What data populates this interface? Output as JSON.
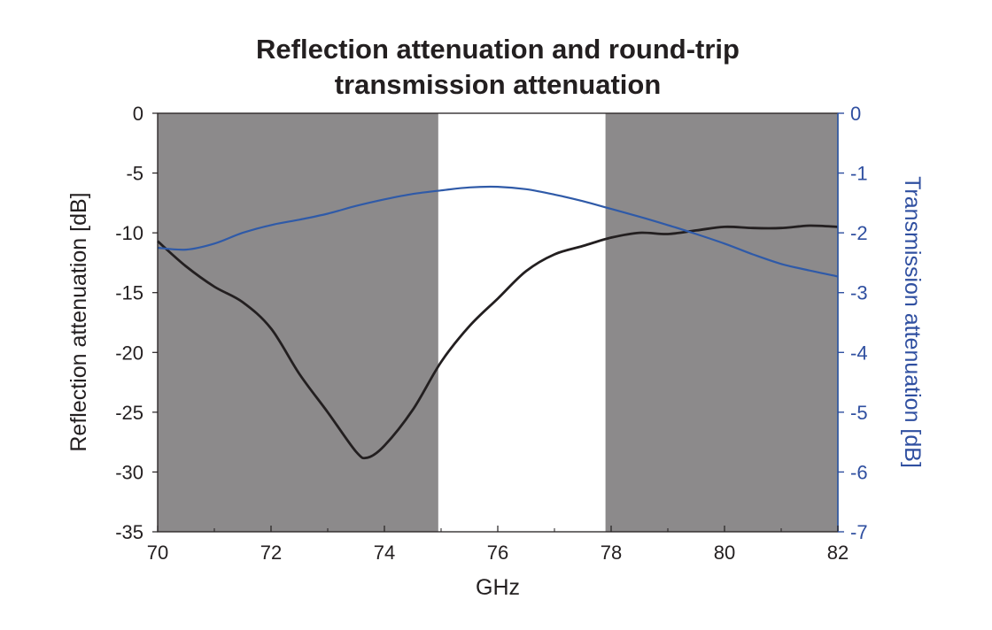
{
  "chart_data": {
    "type": "line",
    "title_lines": [
      "Reflection attenuation and round-trip",
      "transmission attenuation"
    ],
    "xlabel": "GHz",
    "ylabel_left": "Reflection attenuation [dB]",
    "ylabel_right": "Transmission attenuation [dB]",
    "xlim": [
      70,
      82
    ],
    "ylim_left": [
      -35,
      0
    ],
    "ylim_right": [
      -7,
      0
    ],
    "x_ticks": [
      "70",
      "72",
      "74",
      "76",
      "78",
      "80",
      "82"
    ],
    "y_left_ticks": [
      "0",
      "-5",
      "-10",
      "-15",
      "-20",
      "-25",
      "-30",
      "-35"
    ],
    "y_right_ticks": [
      "0",
      "-1",
      "-2",
      "-3",
      "-4",
      "-5",
      "-6",
      "-7"
    ],
    "shaded_bands": [
      {
        "from": 70,
        "to": 74.95,
        "color": "#8c8a8b"
      },
      {
        "from": 77.9,
        "to": 82,
        "color": "#8c8a8b"
      }
    ],
    "grid": false,
    "colors": {
      "reflection": "#231f20",
      "transmission": "#2f5aa8",
      "right_axis": "#2f4fa0"
    },
    "series": [
      {
        "axis": "left",
        "x": [
          70,
          70.5,
          71,
          71.5,
          72,
          72.5,
          73,
          73.5,
          73.7,
          74,
          74.5,
          75,
          75.5,
          76,
          76.5,
          77,
          77.5,
          78,
          78.5,
          79,
          79.5,
          80,
          80.5,
          81,
          81.5,
          82
        ],
        "values": [
          -10.7,
          -12.8,
          -14.5,
          -15.8,
          -18.0,
          -21.8,
          -25.0,
          -28.3,
          -28.8,
          -27.8,
          -24.8,
          -20.8,
          -17.8,
          -15.5,
          -13.2,
          -11.8,
          -11.1,
          -10.4,
          -10.0,
          -10.1,
          -9.8,
          -9.5,
          -9.6,
          -9.6,
          -9.4,
          -9.5
        ]
      },
      {
        "axis": "right",
        "x": [
          70,
          70.5,
          71,
          71.5,
          72,
          72.5,
          73,
          73.5,
          74,
          74.5,
          75,
          75.5,
          76,
          76.5,
          77,
          77.5,
          78,
          78.5,
          79,
          79.5,
          80,
          80.5,
          81,
          81.5,
          82
        ],
        "values": [
          -2.25,
          -2.28,
          -2.18,
          -2.0,
          -1.87,
          -1.78,
          -1.68,
          -1.55,
          -1.44,
          -1.35,
          -1.29,
          -1.24,
          -1.23,
          -1.27,
          -1.36,
          -1.47,
          -1.6,
          -1.73,
          -1.87,
          -2.02,
          -2.18,
          -2.36,
          -2.52,
          -2.63,
          -2.73
        ]
      }
    ]
  }
}
